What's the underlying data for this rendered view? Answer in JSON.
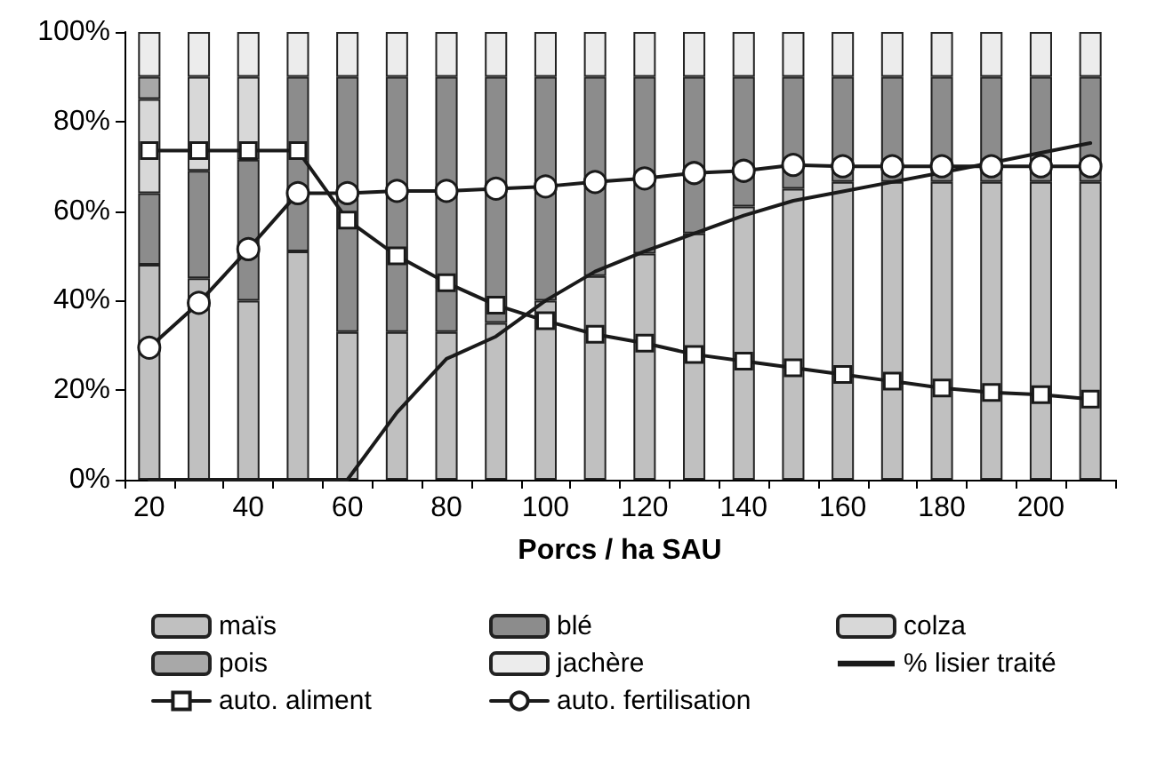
{
  "chart_data": {
    "type": "bar",
    "stacked": true,
    "xlabel": "Porcs / ha SAU",
    "categories": [
      "20",
      null,
      "40",
      null,
      "60",
      null,
      "80",
      null,
      "100",
      null,
      "120",
      null,
      "140",
      null,
      "160",
      null,
      "180",
      null,
      "200",
      null
    ],
    "series": [
      {
        "name": "maïs",
        "color": "#c0c0c0",
        "values": [
          48,
          45,
          40,
          51,
          33,
          33,
          33,
          35,
          40,
          45.5,
          50.5,
          55,
          61,
          65,
          66.5,
          66.5,
          66.5,
          66.5,
          66.5,
          66.5
        ]
      },
      {
        "name": "blé",
        "color": "#8c8c8c",
        "values": [
          16,
          24,
          31.5,
          39,
          57,
          57,
          57,
          55,
          50,
          44.5,
          39.5,
          35,
          29,
          25,
          23.5,
          23.5,
          23.5,
          23.5,
          23.5,
          23.5
        ]
      },
      {
        "name": "colza",
        "color": "#d8d8d8",
        "values": [
          21,
          21,
          18.5,
          0,
          0,
          0,
          0,
          0,
          0,
          0,
          0,
          0,
          0,
          0,
          0,
          0,
          0,
          0,
          0,
          0
        ]
      },
      {
        "name": "pois",
        "color": "#a8a8a8",
        "values": [
          5,
          0,
          0,
          0,
          0,
          0,
          0,
          0,
          0,
          0,
          0,
          0,
          0,
          0,
          0,
          0,
          0,
          0,
          0,
          0
        ]
      },
      {
        "name": "jachère",
        "color": "#ececec",
        "values": [
          10,
          10,
          10,
          10,
          10,
          10,
          10,
          10,
          10,
          10,
          10,
          10,
          10,
          10,
          10,
          10,
          10,
          10,
          10,
          10
        ]
      },
      {
        "name": "% lisier traité",
        "type": "line",
        "color": "#1a1a1a",
        "marker": "none",
        "values": [
          0,
          0,
          0,
          0,
          0,
          15,
          27,
          32,
          40,
          46.5,
          51,
          55,
          59,
          62.3,
          64.4,
          66.5,
          68.6,
          70.8,
          73,
          75.2
        ]
      },
      {
        "name": "auto. aliment",
        "type": "line",
        "color": "#1a1a1a",
        "marker": "square",
        "values": [
          73.5,
          73.5,
          73.5,
          73.5,
          58,
          50,
          44,
          39,
          35.5,
          32.5,
          30.5,
          28,
          26.5,
          25,
          23.5,
          22,
          20.5,
          19.5,
          19,
          18
        ]
      },
      {
        "name": "auto. fertilisation",
        "type": "line",
        "color": "#1a1a1a",
        "marker": "circle",
        "values": [
          29.5,
          39.5,
          51.5,
          64,
          64,
          64.5,
          64.5,
          65,
          65.5,
          66.5,
          67.3,
          68.5,
          69,
          70.3,
          70,
          70,
          70,
          70,
          70,
          70
        ]
      }
    ],
    "ylim": [
      0,
      100
    ],
    "yticks": [
      {
        "value": 0,
        "label": "0%"
      },
      {
        "value": 20,
        "label": "20%"
      },
      {
        "value": 40,
        "label": "40%"
      },
      {
        "value": 60,
        "label": "60%"
      },
      {
        "value": 80,
        "label": "80%"
      },
      {
        "value": 100,
        "label": "100%"
      }
    ],
    "grid": false,
    "legend": "bottom"
  }
}
